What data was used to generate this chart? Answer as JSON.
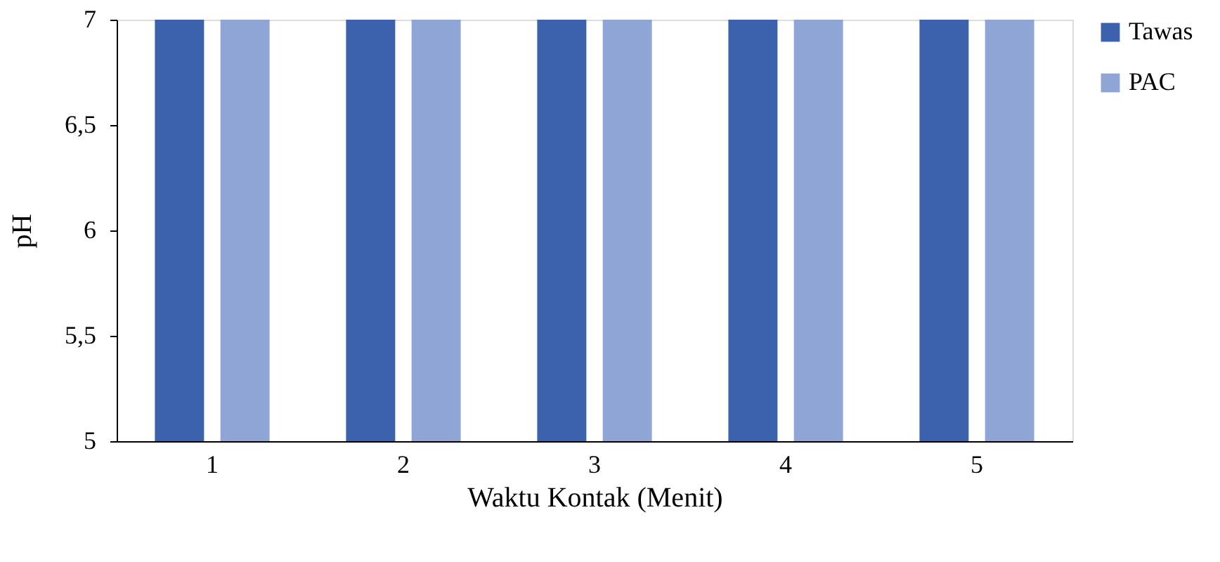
{
  "chart_data": {
    "type": "bar",
    "xlabel": "Waktu Kontak (Menit)",
    "ylabel": "pH",
    "categories": [
      "1",
      "2",
      "3",
      "4",
      "5"
    ],
    "series": [
      {
        "name": "Tawas",
        "color": "#3d62ad",
        "values": [
          7,
          7,
          7,
          7,
          7
        ]
      },
      {
        "name": "PAC",
        "color": "#8fa5d6",
        "values": [
          7,
          7,
          7,
          7,
          7
        ]
      }
    ],
    "ylim": [
      5,
      7
    ],
    "yticks": [
      5,
      {
        "value": 5.5,
        "label": "5,5"
      },
      6,
      {
        "value": 6.5,
        "label": "6,5"
      },
      7
    ],
    "grid": false,
    "legend": "right"
  }
}
